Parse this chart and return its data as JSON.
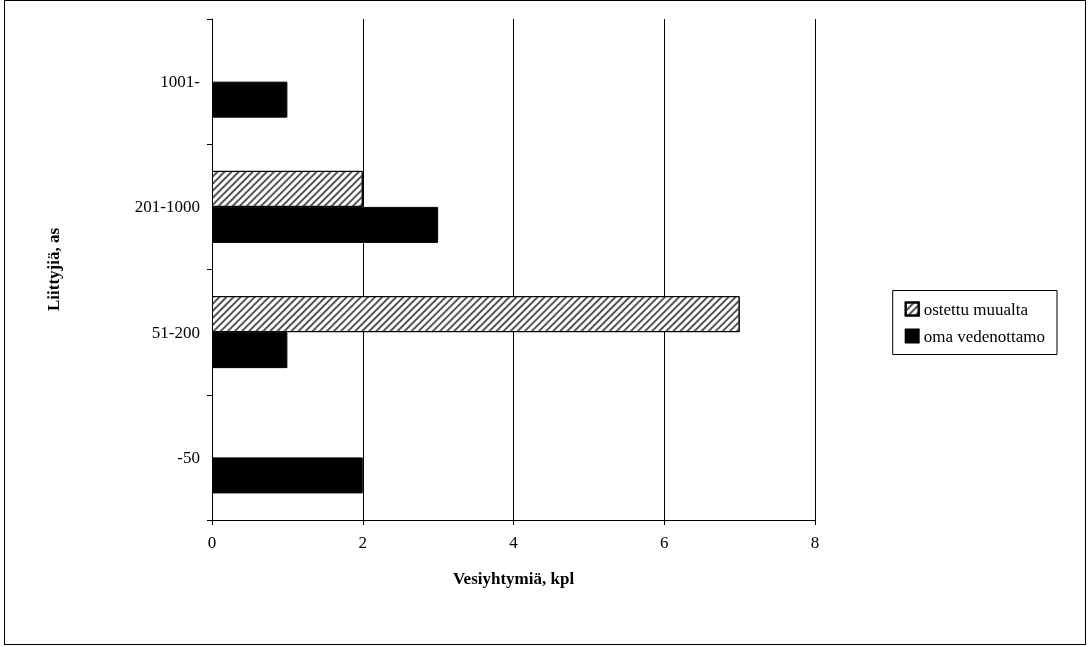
{
  "chart_data": {
    "type": "bar",
    "orientation": "horizontal",
    "xlabel": "Vesiyhtymiä, kpl",
    "ylabel": "Liittyjiä, as",
    "categories": [
      "1001-",
      "201-1000",
      "51-200",
      "-50"
    ],
    "series": [
      {
        "name": "ostettu muualta",
        "color": "#ffffff",
        "values": [
          null,
          2,
          7,
          null
        ]
      },
      {
        "name": "oma vedenottamo",
        "color": "#000000",
        "values": [
          1,
          3,
          1,
          2
        ]
      }
    ],
    "xlim": [
      0,
      8
    ],
    "xticks": [
      0,
      2,
      4,
      6,
      8
    ],
    "grid": "x",
    "legend": "right"
  }
}
